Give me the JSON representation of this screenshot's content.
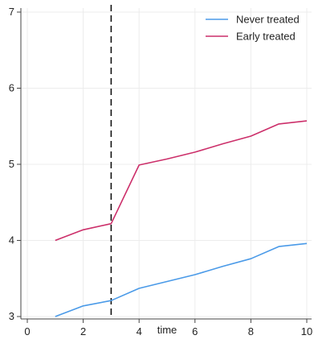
{
  "chart_data": {
    "type": "line",
    "title": "",
    "xlabel": "time",
    "ylabel": "",
    "xlim": [
      0,
      10
    ],
    "ylim": [
      3,
      7
    ],
    "xticks": [
      0,
      2,
      4,
      6,
      8,
      10
    ],
    "yticks": [
      3,
      4,
      5,
      6,
      7
    ],
    "grid": true,
    "legend_position": "top-right",
    "vertical_reference_line": 3,
    "series": [
      {
        "name": "Never treated",
        "color": "#4a9ae8",
        "x": [
          1,
          2,
          3,
          4,
          5,
          6,
          7,
          8,
          9,
          10
        ],
        "y": [
          3.0,
          3.14,
          3.21,
          3.37,
          3.46,
          3.55,
          3.66,
          3.76,
          3.92,
          3.96
        ]
      },
      {
        "name": "Early treated",
        "color": "#cc2f6a",
        "x": [
          1,
          2,
          3,
          4,
          5,
          6,
          7,
          8,
          9,
          10
        ],
        "y": [
          4.0,
          4.14,
          4.22,
          4.99,
          5.07,
          5.16,
          5.27,
          5.37,
          5.53,
          5.57
        ]
      }
    ]
  }
}
